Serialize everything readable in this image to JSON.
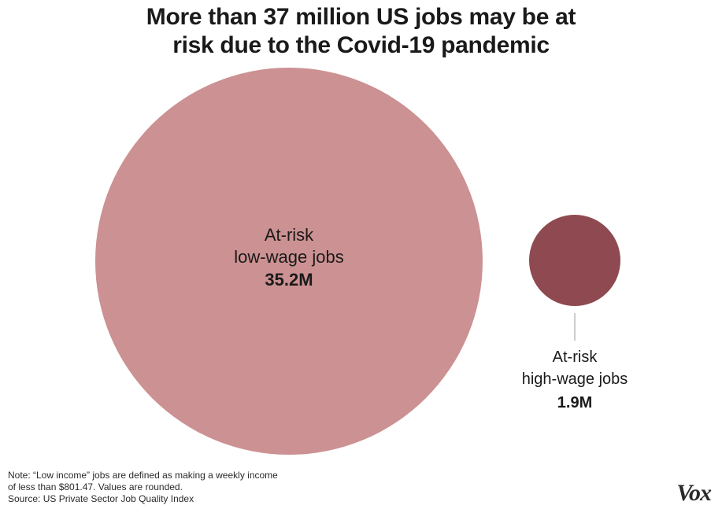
{
  "title_lines": [
    "More than 37 million US jobs may be at",
    "risk due to the Covid-19 pandemic"
  ],
  "chart_data": {
    "type": "bubble",
    "title": "More than 37 million US jobs may be at risk due to the Covid-19 pandemic",
    "unit": "M",
    "items": [
      {
        "label_lines": [
          "At-risk",
          "low-wage jobs"
        ],
        "value": 35.2,
        "value_label": "35.2M",
        "color": "#cc9192"
      },
      {
        "label_lines": [
          "At-risk",
          "high-wage jobs"
        ],
        "value": 1.9,
        "value_label": "1.9M",
        "color": "#8e4a50"
      }
    ]
  },
  "note_lines": [
    "Note: “Low income” jobs are defined as making a weekly income",
    "of less than $801.47. Values are rounded.",
    "Source: US Private Sector Job Quality Index"
  ],
  "logo_text": "Vox",
  "colors": {
    "connector": "#9a9a9a"
  }
}
